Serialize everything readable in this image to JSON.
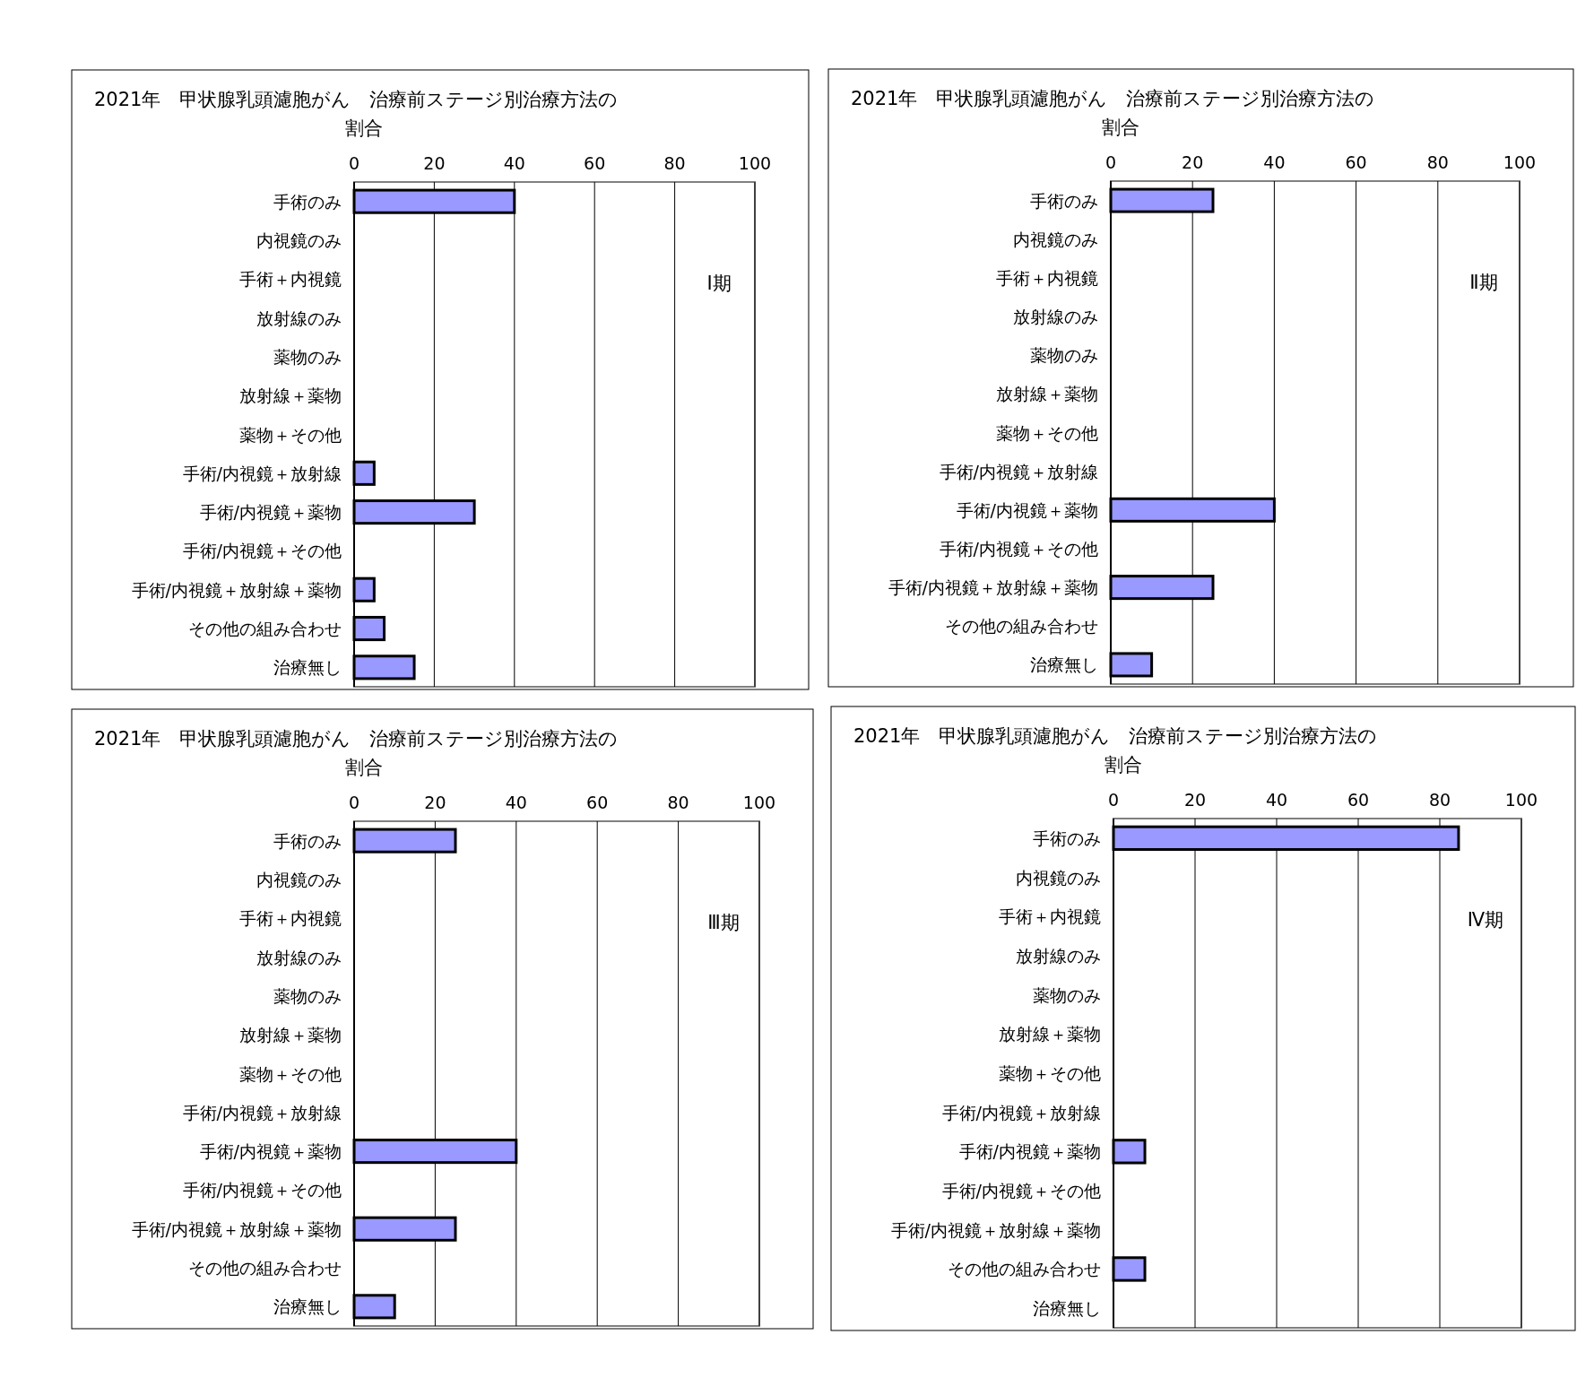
{
  "chart_data": [
    {
      "type": "bar",
      "orientation": "horizontal",
      "title": "2021年　甲状腺乳頭濾胞がん　治療前ステージ別治療方法の割合",
      "categories": [
        "手術のみ",
        "内視鏡のみ",
        "手術＋内視鏡",
        "放射線のみ",
        "薬物のみ",
        "放射線＋薬物",
        "薬物＋その他",
        "手術/内視鏡＋放射線",
        "手術/内視鏡＋薬物",
        "手術/内視鏡＋その他",
        "手術/内視鏡＋放射線＋薬物",
        "その他の組み合わせ",
        "治療無し"
      ],
      "values": [
        40,
        0,
        0,
        0,
        0,
        0,
        0,
        5,
        30,
        0,
        5,
        7.5,
        15
      ],
      "color": "#9999ff",
      "xlim": [
        0,
        100
      ],
      "xticks": [
        0,
        20,
        40,
        60,
        80,
        100
      ],
      "grid": "x",
      "annotations": [
        "Ⅰ期"
      ]
    },
    {
      "type": "bar",
      "orientation": "horizontal",
      "title": "2021年　甲状腺乳頭濾胞がん　治療前ステージ別治療方法の割合",
      "categories": [
        "手術のみ",
        "内視鏡のみ",
        "手術＋内視鏡",
        "放射線のみ",
        "薬物のみ",
        "放射線＋薬物",
        "薬物＋その他",
        "手術/内視鏡＋放射線",
        "手術/内視鏡＋薬物",
        "手術/内視鏡＋その他",
        "手術/内視鏡＋放射線＋薬物",
        "その他の組み合わせ",
        "治療無し"
      ],
      "values": [
        25,
        0,
        0,
        0,
        0,
        0,
        0,
        0,
        40,
        0,
        25,
        0,
        10
      ],
      "color": "#9999ff",
      "xlim": [
        0,
        100
      ],
      "xticks": [
        0,
        20,
        40,
        60,
        80,
        100
      ],
      "grid": "x",
      "annotations": [
        "Ⅱ期"
      ]
    },
    {
      "type": "bar",
      "orientation": "horizontal",
      "title": "2021年　甲状腺乳頭濾胞がん　治療前ステージ別治療方法の割合",
      "categories": [
        "手術のみ",
        "内視鏡のみ",
        "手術＋内視鏡",
        "放射線のみ",
        "薬物のみ",
        "放射線＋薬物",
        "薬物＋その他",
        "手術/内視鏡＋放射線",
        "手術/内視鏡＋薬物",
        "手術/内視鏡＋その他",
        "手術/内視鏡＋放射線＋薬物",
        "その他の組み合わせ",
        "治療無し"
      ],
      "values": [
        25,
        0,
        0,
        0,
        0,
        0,
        0,
        0,
        40,
        0,
        25,
        0,
        10
      ],
      "color": "#9999ff",
      "xlim": [
        0,
        100
      ],
      "xticks": [
        0,
        20,
        40,
        60,
        80,
        100
      ],
      "grid": "x",
      "annotations": [
        "Ⅲ期"
      ]
    },
    {
      "type": "bar",
      "orientation": "horizontal",
      "title": "2021年　甲状腺乳頭濾胞がん　治療前ステージ別治療方法の割合",
      "categories": [
        "手術のみ",
        "内視鏡のみ",
        "手術＋内視鏡",
        "放射線のみ",
        "薬物のみ",
        "放射線＋薬物",
        "薬物＋その他",
        "手術/内視鏡＋放射線",
        "手術/内視鏡＋薬物",
        "手術/内視鏡＋その他",
        "手術/内視鏡＋放射線＋薬物",
        "その他の組み合わせ",
        "治療無し"
      ],
      "values": [
        84.6,
        0,
        0,
        0,
        0,
        0,
        0,
        0,
        7.7,
        0,
        0,
        7.7,
        0
      ],
      "color": "#9999ff",
      "xlim": [
        0,
        100
      ],
      "xticks": [
        0,
        20,
        40,
        60,
        80,
        100
      ],
      "grid": "x",
      "annotations": [
        "Ⅳ期"
      ]
    }
  ]
}
